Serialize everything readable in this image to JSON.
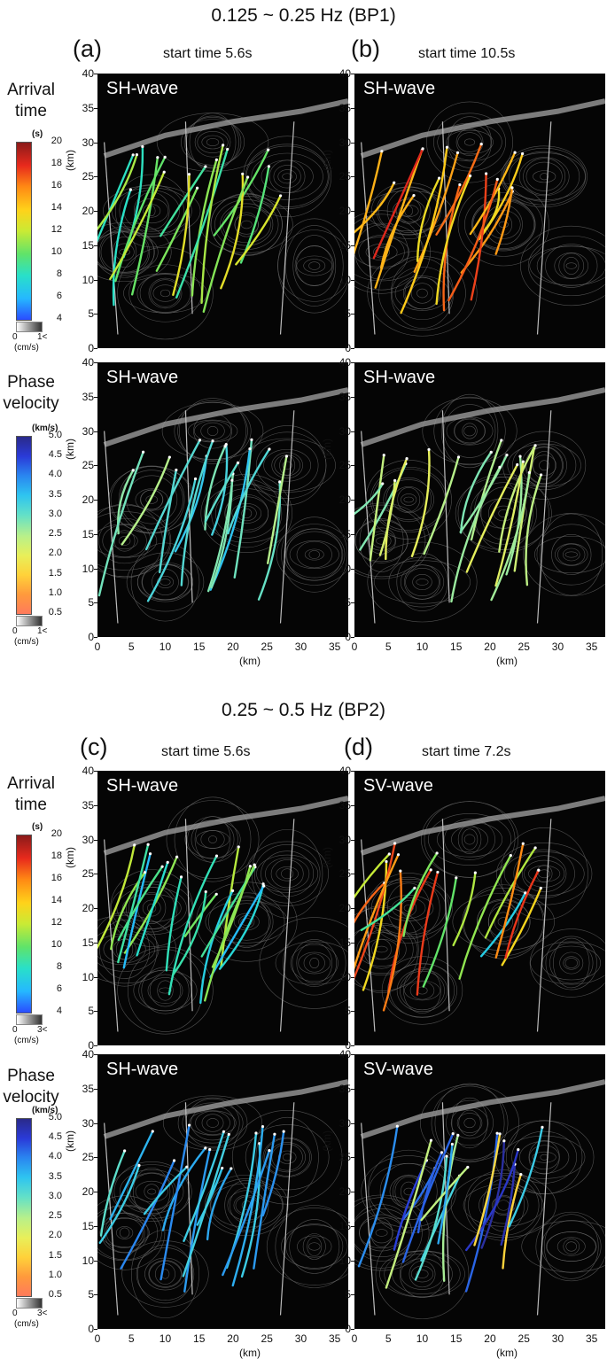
{
  "sections": [
    {
      "title": "0.125 ~ 0.25 Hz (BP1)"
    },
    {
      "title": "0.25 ~ 0.5 Hz (BP2)"
    }
  ],
  "panels": [
    {
      "letter": "(a)",
      "start_time": "start time  5.6s"
    },
    {
      "letter": "(b)",
      "start_time": "start time 10.5s"
    },
    {
      "letter": "(c)",
      "start_time": "start time 5.6s"
    },
    {
      "letter": "(d)",
      "start_time": "start time 7.2s"
    }
  ],
  "wave_labels": [
    "SH-wave",
    "SH-wave",
    "SH-wave",
    "SH-wave",
    "SH-wave",
    "SV-wave",
    "SH-wave",
    "SV-wave"
  ],
  "row_labels": {
    "arrival": [
      "Arrival",
      "time"
    ],
    "phase": [
      "Phase",
      "velocity"
    ]
  },
  "axes": {
    "x_label": "(km)",
    "y_label": "(km)",
    "x_ticks": [
      0,
      5,
      10,
      15,
      20,
      25,
      30,
      35
    ],
    "y_ticks": [
      0,
      5,
      10,
      15,
      20,
      25,
      30,
      35,
      40
    ],
    "xlim": [
      0,
      37
    ],
    "ylim": [
      0,
      40
    ]
  },
  "colorbars": {
    "arrival": {
      "unit": "(s)",
      "ticks": [
        20,
        18,
        16,
        14,
        12,
        10,
        8,
        6,
        4
      ],
      "range": [
        4,
        20
      ],
      "colors": [
        "#2a4cff",
        "#25b8ff",
        "#29e0c9",
        "#5fe36a",
        "#c9ea35",
        "#ffd21a",
        "#ff8a14",
        "#e82a1c",
        "#8b1a1a"
      ]
    },
    "phase": {
      "unit": "(km/s)",
      "ticks": [
        "5.0",
        "4.5",
        "4.0",
        "3.5",
        "3.0",
        "2.5",
        "2.0",
        "1.5",
        "1.0",
        "0.5"
      ],
      "range": [
        0.5,
        5.0
      ],
      "colors": [
        "#ff7a5c",
        "#ff9a3c",
        "#ffd23a",
        "#e8ef5a",
        "#b8f08a",
        "#62e0c8",
        "#2ec4f0",
        "#2a86f0",
        "#2a3ad8",
        "#2a2a8a"
      ]
    },
    "amplitude_bp1": {
      "min": "0",
      "max": "1<",
      "unit": "(cm/s)"
    },
    "amplitude_bp2": {
      "min": "0",
      "max": "3<",
      "unit": "(cm/s)"
    }
  },
  "chart_data": [
    {
      "type": "scatter",
      "panel": "(a) arrival time",
      "wave": "SH-wave",
      "start_time_s": 5.6,
      "band": "BP1",
      "xlim": [
        0,
        37
      ],
      "ylim": [
        0,
        40
      ],
      "xlabel": "(km)",
      "ylabel": "(km)",
      "color_quantity": "arrival time (s)",
      "dominant_value_range": [
        8,
        13
      ]
    },
    {
      "type": "scatter",
      "panel": "(b) arrival time",
      "wave": "SH-wave",
      "start_time_s": 10.5,
      "band": "BP1",
      "xlim": [
        0,
        37
      ],
      "ylim": [
        0,
        40
      ],
      "xlabel": "(km)",
      "ylabel": "(km)",
      "color_quantity": "arrival time (s)",
      "dominant_value_range": [
        13,
        19
      ]
    },
    {
      "type": "scatter",
      "panel": "(a) phase velocity",
      "wave": "SH-wave",
      "band": "BP1",
      "xlim": [
        0,
        37
      ],
      "ylim": [
        0,
        40
      ],
      "xlabel": "(km)",
      "ylabel": "(km)",
      "color_quantity": "phase velocity (km/s)",
      "dominant_value_range": [
        2.5,
        3.5
      ]
    },
    {
      "type": "scatter",
      "panel": "(b) phase velocity",
      "wave": "SH-wave",
      "band": "BP1",
      "xlim": [
        0,
        37
      ],
      "ylim": [
        0,
        40
      ],
      "xlabel": "(km)",
      "ylabel": "(km)",
      "color_quantity": "phase velocity (km/s)",
      "dominant_value_range": [
        2.0,
        3.0
      ]
    },
    {
      "type": "scatter",
      "panel": "(c) arrival time",
      "wave": "SH-wave",
      "start_time_s": 5.6,
      "band": "BP2",
      "xlim": [
        0,
        37
      ],
      "ylim": [
        0,
        40
      ],
      "xlabel": "(km)",
      "ylabel": "(km)",
      "color_quantity": "arrival time (s)",
      "dominant_value_range": [
        6,
        12
      ]
    },
    {
      "type": "scatter",
      "panel": "(d) arrival time",
      "wave": "SV-wave",
      "start_time_s": 7.2,
      "band": "BP2",
      "xlim": [
        0,
        37
      ],
      "ylim": [
        0,
        40
      ],
      "xlabel": "(km)",
      "ylabel": "(km)",
      "color_quantity": "arrival time (s)",
      "dominant_value_range": [
        7,
        18
      ]
    },
    {
      "type": "scatter",
      "panel": "(c) phase velocity",
      "wave": "SH-wave",
      "band": "BP2",
      "xlim": [
        0,
        37
      ],
      "ylim": [
        0,
        40
      ],
      "xlabel": "(km)",
      "ylabel": "(km)",
      "color_quantity": "phase velocity (km/s)",
      "dominant_value_range": [
        3.0,
        4.0
      ]
    },
    {
      "type": "scatter",
      "panel": "(d) phase velocity",
      "wave": "SV-wave",
      "band": "BP2",
      "xlim": [
        0,
        37
      ],
      "ylim": [
        0,
        40
      ],
      "xlabel": "(km)",
      "ylabel": "(km)",
      "color_quantity": "phase velocity (km/s)",
      "dominant_value_range": [
        1.5,
        5.0
      ]
    }
  ]
}
